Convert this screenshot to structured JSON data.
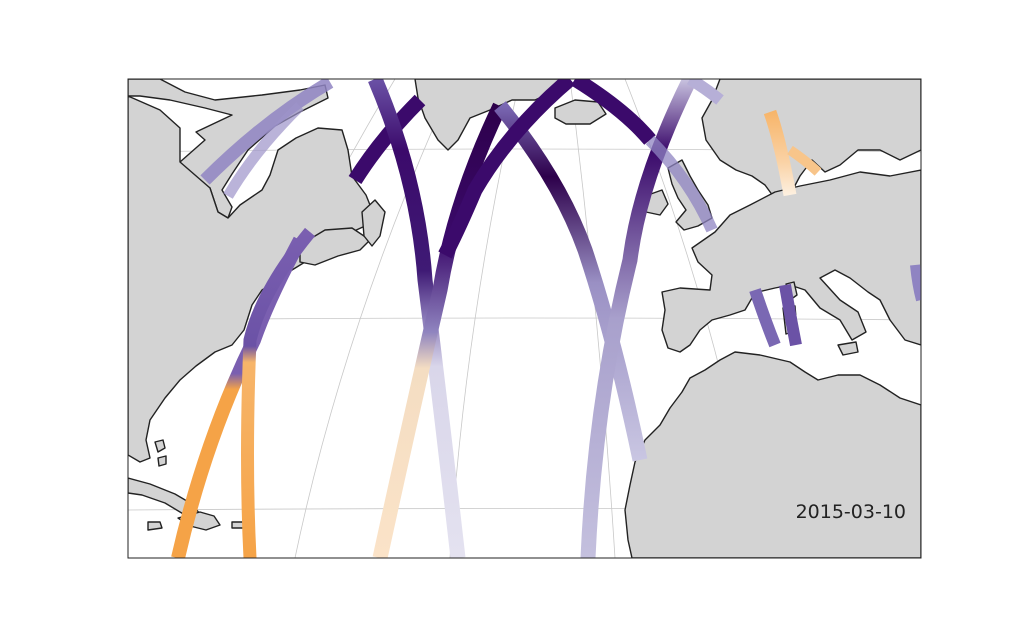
{
  "map": {
    "date_label": "2015-03-10",
    "colors": {
      "land": "#d3d3d3",
      "coastline": "#222222",
      "ocean": "#ffffff",
      "grid": "#c8c8c8",
      "track_low": "#f5a347",
      "track_mid": "#f1eef6",
      "track_high": "#2d004b"
    }
  }
}
